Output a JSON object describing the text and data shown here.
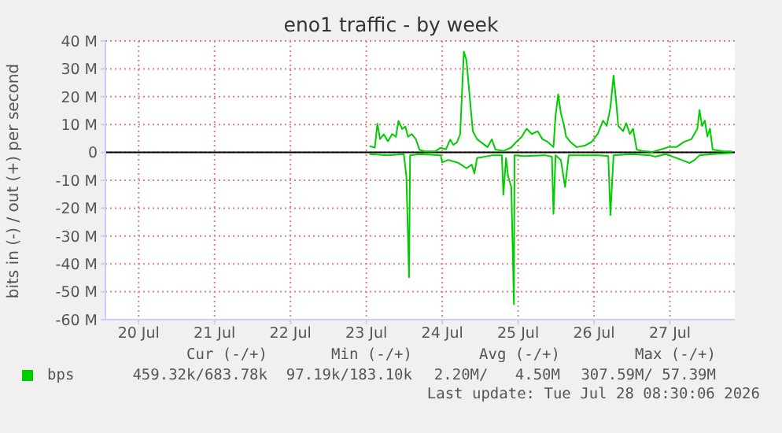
{
  "chart_data": {
    "type": "line",
    "title": "eno1 traffic - by week",
    "ylabel": "bits in (-) / out (+) per second",
    "xlim": [
      "2026-07-19T13:30",
      "2026-07-27T20:30"
    ],
    "xticks": [
      {
        "value": "2026-07-20",
        "label": "20 Jul"
      },
      {
        "value": "2026-07-21",
        "label": "21 Jul"
      },
      {
        "value": "2026-07-22",
        "label": "22 Jul"
      },
      {
        "value": "2026-07-23",
        "label": "23 Jul"
      },
      {
        "value": "2026-07-24",
        "label": "24 Jul"
      },
      {
        "value": "2026-07-25",
        "label": "25 Jul"
      },
      {
        "value": "2026-07-26",
        "label": "26 Jul"
      },
      {
        "value": "2026-07-27",
        "label": "27 Jul"
      }
    ],
    "ylim": [
      -60,
      40
    ],
    "yticks": [
      {
        "value": -60,
        "label": "-60 M"
      },
      {
        "value": -50,
        "label": "-50 M"
      },
      {
        "value": -40,
        "label": "-40 M"
      },
      {
        "value": -30,
        "label": "-30 M"
      },
      {
        "value": -20,
        "label": "-20 M"
      },
      {
        "value": -10,
        "label": "-10 M"
      },
      0,
      {
        "value": 10,
        "label": "10 M"
      },
      {
        "value": 20,
        "label": "20 M"
      },
      {
        "value": 30,
        "label": "30 M"
      },
      {
        "value": 40,
        "label": "40 M"
      }
    ],
    "grid": true,
    "legend": "bottom",
    "marker": "none",
    "line_style": "solid",
    "ref_lines": [
      {
        "axis": "y",
        "value": 0,
        "color": "#000000"
      }
    ],
    "series": [
      {
        "name": "bps",
        "color": "#00cc00",
        "x": [
          "2026-07-23T01:00",
          "2026-07-23T02:40",
          "2026-07-23T03:30",
          "2026-07-23T04:20",
          "2026-07-23T05:30",
          "2026-07-23T06:50",
          "2026-07-23T08:10",
          "2026-07-23T09:20",
          "2026-07-23T10:10",
          "2026-07-23T11:20",
          "2026-07-23T12:20",
          "2026-07-23T13:10",
          "2026-07-23T14:20",
          "2026-07-23T15:40",
          "2026-07-23T16:50",
          "2026-07-23T18:30",
          "2026-07-23T21:50",
          "2026-07-23T23:30",
          "2026-07-24T01:10",
          "2026-07-24T02:30",
          "2026-07-24T03:30",
          "2026-07-24T04:40",
          "2026-07-24T05:40",
          "2026-07-24T06:50",
          "2026-07-24T07:40",
          "2026-07-24T08:50",
          "2026-07-24T09:40",
          "2026-07-24T11:00",
          "2026-07-24T12:40",
          "2026-07-24T14:20",
          "2026-07-24T15:40",
          "2026-07-24T16:50",
          "2026-07-24T19:20",
          "2026-07-24T21:50",
          "2026-07-24T23:20",
          "2026-07-25T01:10",
          "2026-07-25T02:40",
          "2026-07-25T04:20",
          "2026-07-25T06:10",
          "2026-07-25T07:40",
          "2026-07-25T09:20",
          "2026-07-25T11:10",
          "2026-07-25T11:50",
          "2026-07-25T12:40",
          "2026-07-25T13:30",
          "2026-07-25T14:20",
          "2026-07-25T15:10",
          "2026-07-25T16:30",
          "2026-07-25T18:30",
          "2026-07-25T21:00",
          "2026-07-25T23:10",
          "2026-07-26T01:10",
          "2026-07-26T02:50",
          "2026-07-26T04:00",
          "2026-07-26T05:10",
          "2026-07-26T06:10",
          "2026-07-26T07:00",
          "2026-07-26T07:40",
          "2026-07-26T09:10",
          "2026-07-26T10:10",
          "2026-07-26T11:20",
          "2026-07-26T12:20",
          "2026-07-26T13:30",
          "2026-07-26T15:10",
          "2026-07-26T18:30",
          "2026-07-26T21:00",
          "2026-07-26T23:30",
          "2026-07-27T02:00",
          "2026-07-27T04:30",
          "2026-07-27T06:50",
          "2026-07-27T08:40",
          "2026-07-27T09:20",
          "2026-07-27T10:10",
          "2026-07-27T11:00",
          "2026-07-27T11:50",
          "2026-07-27T12:40",
          "2026-07-27T13:30",
          "2026-07-27T16:50",
          "2026-07-27T19:40"
        ],
        "values": [
          2.3,
          1.7,
          10.3,
          4.8,
          6.5,
          4.0,
          6.6,
          5.6,
          11.3,
          8.4,
          9.3,
          5.6,
          6.6,
          4.7,
          0.9,
          0.4,
          0.4,
          1.7,
          1.1,
          4.6,
          2.7,
          3.6,
          6.6,
          36.2,
          33,
          18,
          7.6,
          4.8,
          3.3,
          1.9,
          4.7,
          1,
          0.5,
          1.8,
          3.7,
          5.7,
          8.5,
          6.6,
          7.6,
          4.8,
          3.8,
          1.9,
          13.3,
          20.8,
          14.1,
          10.5,
          5.7,
          3.8,
          1.9,
          2.4,
          3.7,
          6.6,
          11.4,
          9.5,
          16.1,
          27.6,
          18.1,
          9.5,
          7.6,
          10.5,
          6.6,
          8.5,
          1,
          0.5,
          0.2,
          1,
          1.9,
          1.9,
          3.8,
          4.8,
          8.5,
          15.2,
          9.5,
          11.4,
          5.7,
          8.5,
          1,
          0.4,
          0.4
        ]
      },
      {
        "color": "#00cc00",
        "x": [
          "2026-07-23T01:00",
          "2026-07-23T06:50",
          "2026-07-23T11:50",
          "2026-07-23T12:40",
          "2026-07-23T13:30",
          "2026-07-23T13:50",
          "2026-07-23T16:50",
          "2026-07-23T23:30",
          "2026-07-24T00:00",
          "2026-07-24T01:50",
          "2026-07-24T05:10",
          "2026-07-24T07:40",
          "2026-07-24T09:20",
          "2026-07-24T10:10",
          "2026-07-24T11:00",
          "2026-07-24T16:00",
          "2026-07-24T18:50",
          "2026-07-24T19:20",
          "2026-07-24T20:10",
          "2026-07-24T20:50",
          "2026-07-24T21:50",
          "2026-07-24T22:40",
          "2026-07-24T22:50",
          "2026-07-25T01:50",
          "2026-07-25T08:30",
          "2026-07-25T10:40",
          "2026-07-25T11:10",
          "2026-07-25T11:50",
          "2026-07-25T13:30",
          "2026-07-25T14:50",
          "2026-07-25T16:00",
          "2026-07-26T01:10",
          "2026-07-26T04:30",
          "2026-07-26T05:10",
          "2026-07-26T06:10",
          "2026-07-26T11:50",
          "2026-07-26T17:40",
          "2026-07-26T19:20",
          "2026-07-26T22:40",
          "2026-07-27T03:40",
          "2026-07-27T06:10",
          "2026-07-27T07:50",
          "2026-07-27T09:20",
          "2026-07-27T13:30",
          "2026-07-27T19:40"
        ],
        "values": [
          -0.6,
          -1,
          -0.6,
          -8.6,
          -44.8,
          -1,
          -0.6,
          -1,
          -3.6,
          -2.7,
          -3.8,
          -5.7,
          -4.4,
          -7.6,
          -2,
          -1,
          -1,
          -15.2,
          -2,
          -8.6,
          -12.4,
          -54.5,
          -1,
          -1.3,
          -1,
          -1.5,
          -22.1,
          -1,
          -2.7,
          -12.4,
          -1,
          -1,
          -1.3,
          -22.5,
          -1,
          -0.6,
          -1,
          -1.5,
          -0.6,
          -2.7,
          -3.8,
          -2.7,
          -1,
          -0.6,
          -0.2
        ]
      }
    ],
    "annotations": [
      "Cur (-/+)",
      "459.32k/683.78k",
      "Min (-/+)",
      "97.19k/183.10k",
      "Avg (-/+)",
      "2.20M/   4.50M",
      "Max (-/+)",
      "307.59M/ 57.39M",
      "Last update: Tue Jul 28 08:30:06 2026"
    ]
  }
}
